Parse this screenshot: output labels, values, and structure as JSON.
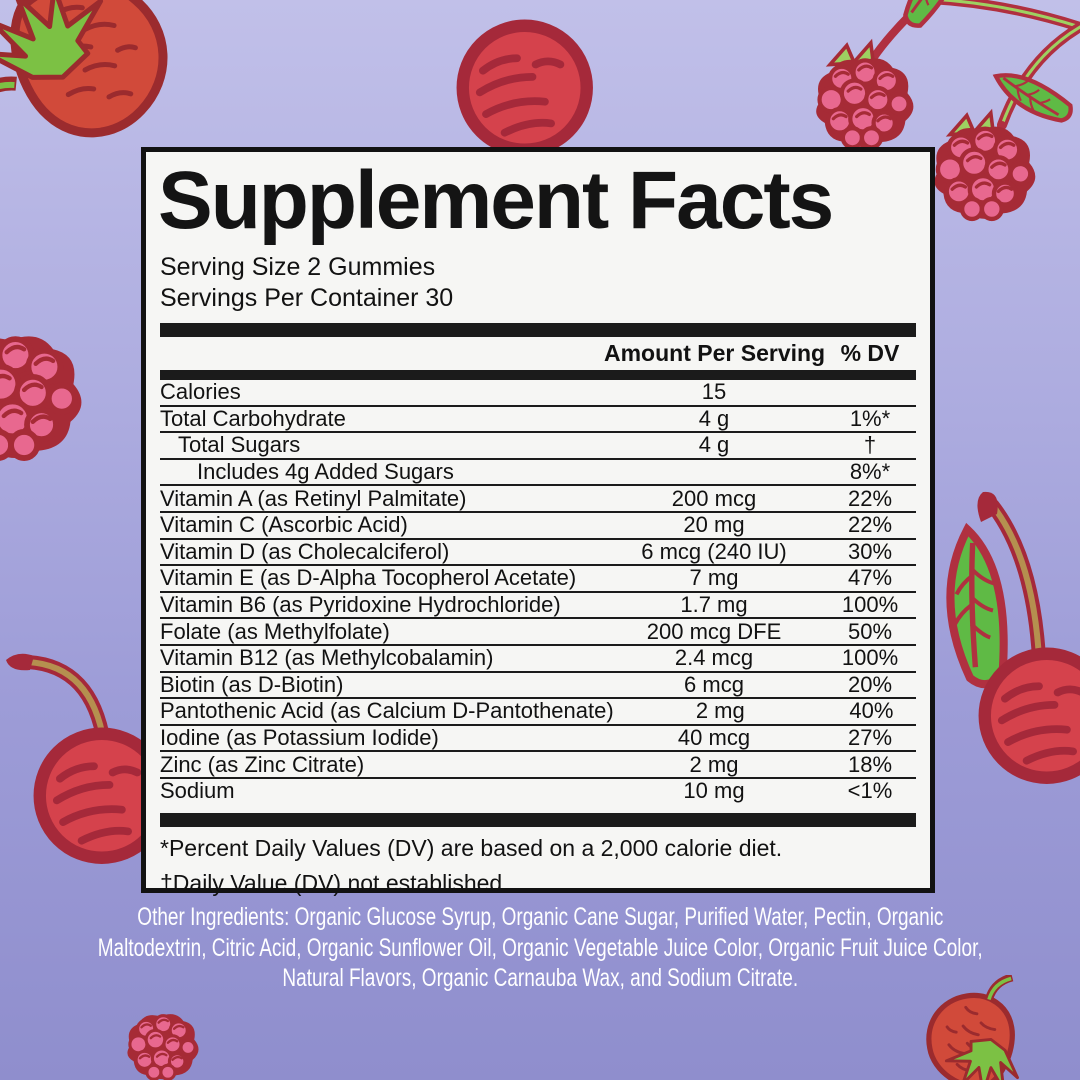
{
  "panel": {
    "title": "Supplement Facts",
    "serving_size": "Serving Size 2 Gummies",
    "servings_per_container": "Servings Per Container 30",
    "columns": {
      "amount": "Amount Per Serving",
      "dv": "% DV"
    },
    "rows": [
      {
        "name": "Calories",
        "amount": "15",
        "dv": "",
        "indent": 0
      },
      {
        "name": "Total Carbohydrate",
        "amount": "4 g",
        "dv": "1%*",
        "indent": 0
      },
      {
        "name": "Total Sugars",
        "amount": "4 g",
        "dv": "†",
        "indent": 1
      },
      {
        "name": "Includes 4g Added Sugars",
        "amount": "",
        "dv": "8%*",
        "indent": 2
      },
      {
        "name": "Vitamin A (as Retinyl Palmitate)",
        "amount": "200 mcg",
        "dv": "22%",
        "indent": 0
      },
      {
        "name": "Vitamin C (Ascorbic Acid)",
        "amount": "20 mg",
        "dv": "22%",
        "indent": 0
      },
      {
        "name": "Vitamin D (as Cholecalciferol)",
        "amount": "6 mcg (240 IU)",
        "dv": "30%",
        "indent": 0
      },
      {
        "name": "Vitamin E (as D-Alpha Tocopherol Acetate)",
        "amount": "7 mg",
        "dv": "47%",
        "indent": 0
      },
      {
        "name": "Vitamin B6 (as Pyridoxine Hydrochloride)",
        "amount": "1.7 mg",
        "dv": "100%",
        "indent": 0
      },
      {
        "name": "Folate (as Methylfolate)",
        "amount": "200 mcg DFE",
        "dv": "50%",
        "indent": 0
      },
      {
        "name": "Vitamin B12 (as Methylcobalamin)",
        "amount": "2.4 mcg",
        "dv": "100%",
        "indent": 0
      },
      {
        "name": "Biotin (as D-Biotin)",
        "amount": "6 mcg",
        "dv": "20%",
        "indent": 0
      },
      {
        "name": "Pantothenic Acid (as Calcium D-Pantothenate)",
        "amount": "2 mg",
        "dv": "40%",
        "indent": 0
      },
      {
        "name": "Iodine (as Potassium Iodide)",
        "amount": "40 mcg",
        "dv": "27%",
        "indent": 0
      },
      {
        "name": "Zinc (as Zinc Citrate)",
        "amount": "2 mg",
        "dv": "18%",
        "indent": 0
      },
      {
        "name": "Sodium",
        "amount": "10 mg",
        "dv": "<1%",
        "indent": 0
      }
    ],
    "footnotes": [
      "*Percent Daily Values (DV) are based on a 2,000 calorie diet.",
      "†Daily Value (DV) not established."
    ]
  },
  "other_ingredients_lines": [
    "Other Ingredients: Organic Glucose Syrup, Organic Cane Sugar, Purified Water, Pectin, Organic",
    "Maltodextrin, Citric Acid, Organic Sunflower Oil, Organic Vegetable Juice Color, Organic Fruit Juice Color,",
    "Natural Flavors, Organic Carnauba Wax, and Sodium Citrate."
  ],
  "colors": {
    "background_top": "#c1c0e9",
    "background_bottom": "#8f8ecd",
    "panel_background": "#f6f6f4",
    "panel_border_and_text": "#121212",
    "ingredients_text": "#ffffff",
    "fruit_red": "#d14a3a",
    "fruit_dark_red": "#9b2b2e",
    "cherry_red": "#d5424c",
    "cherry_dark": "#a5293a",
    "raspberry_pink": "#e8688f",
    "raspberry_dark": "#a62b36",
    "leaf_green": "#7cc144",
    "leaf_light_green": "#9ed161",
    "stem_tan": "#b5904f"
  }
}
